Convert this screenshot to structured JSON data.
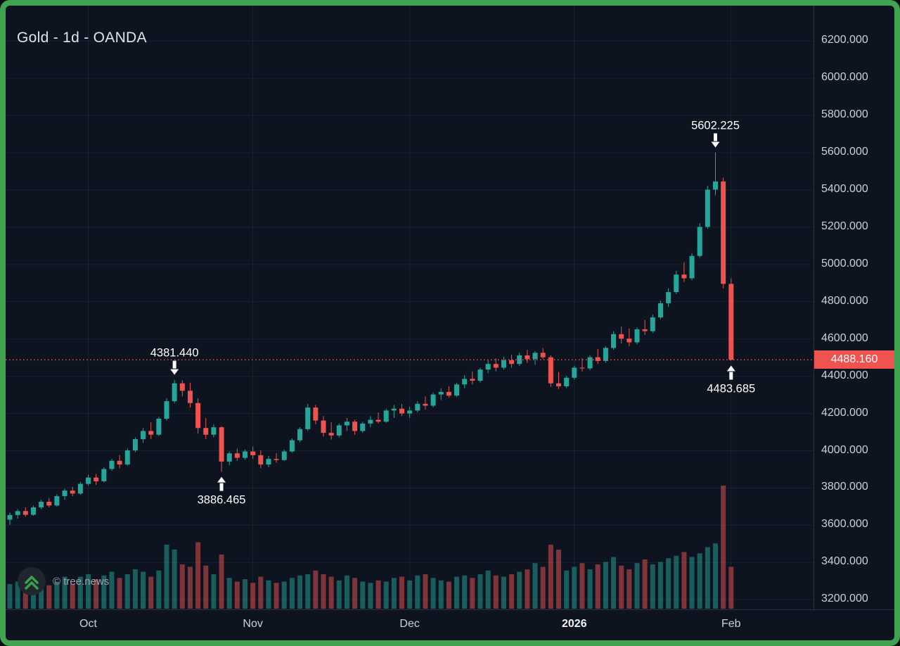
{
  "header": {
    "title": "Gold - 1d - OANDA"
  },
  "watermark": {
    "text": "© tree.news"
  },
  "price_label": {
    "value": "4488.160"
  },
  "colors": {
    "frame": "#3fa34f",
    "background": "#0d1420",
    "grid": "rgba(151,166,189,0.10)",
    "up": "#26a69a",
    "down": "#ef5350",
    "vol_up": "rgba(38,166,154,0.50)",
    "vol_down": "rgba(239,83,80,0.50)",
    "price_line": "#ef5350",
    "price_box": "#ef5350",
    "axis_text": "#ccd0da",
    "annotation": "#ffffff"
  },
  "chart_data": {
    "type": "candlestick",
    "symbol": "Gold",
    "interval": "1d",
    "exchange": "OANDA",
    "title": "Gold - 1d - OANDA",
    "legend_position": "none",
    "grid": true,
    "current_price": 4488.16,
    "price_axis": {
      "min_visible": 3148,
      "max_visible": 6390,
      "decimals": 3,
      "ticks": [
        3200,
        3400,
        3600,
        3800,
        4000,
        4200,
        4400,
        4600,
        4800,
        5000,
        5200,
        5400,
        5600,
        5800,
        6000,
        6200
      ]
    },
    "time_ticks": [
      {
        "label": "Oct",
        "index": 10
      },
      {
        "label": "Nov",
        "index": 31
      },
      {
        "label": "Dec",
        "index": 51
      },
      {
        "label": "2026",
        "index": 72,
        "emphasis": true
      },
      {
        "label": "Feb",
        "index": 92
      }
    ],
    "annotations": [
      {
        "text": "4381.440",
        "index": 21,
        "direction": "down"
      },
      {
        "text": "3886.465",
        "index": 27,
        "direction": "up"
      },
      {
        "text": "5602.225",
        "index": 90,
        "direction": "down"
      },
      {
        "text": "4483.685",
        "index": 92,
        "direction": "up"
      }
    ],
    "candles": [
      [
        3630,
        3668,
        3602,
        3655
      ],
      [
        3655,
        3686,
        3636,
        3676
      ],
      [
        3676,
        3696,
        3646,
        3656
      ],
      [
        3656,
        3706,
        3650,
        3696
      ],
      [
        3696,
        3736,
        3686,
        3726
      ],
      [
        3726,
        3746,
        3696,
        3706
      ],
      [
        3706,
        3766,
        3700,
        3756
      ],
      [
        3756,
        3796,
        3736,
        3786
      ],
      [
        3786,
        3806,
        3756,
        3770
      ],
      [
        3770,
        3832,
        3764,
        3822
      ],
      [
        3822,
        3872,
        3812,
        3856
      ],
      [
        3856,
        3876,
        3816,
        3836
      ],
      [
        3836,
        3912,
        3830,
        3902
      ],
      [
        3902,
        3956,
        3892,
        3946
      ],
      [
        3946,
        3976,
        3906,
        3926
      ],
      [
        3926,
        4012,
        3920,
        4002
      ],
      [
        4002,
        4072,
        3992,
        4062
      ],
      [
        4062,
        4122,
        4042,
        4106
      ],
      [
        4106,
        4152,
        4062,
        4086
      ],
      [
        4086,
        4182,
        4080,
        4172
      ],
      [
        4172,
        4282,
        4162,
        4266
      ],
      [
        4266,
        4381.44,
        4256,
        4362
      ],
      [
        4362,
        4378,
        4292,
        4322
      ],
      [
        4322,
        4366,
        4232,
        4256
      ],
      [
        4256,
        4282,
        4092,
        4122
      ],
      [
        4122,
        4176,
        4062,
        4086
      ],
      [
        4086,
        4142,
        4072,
        4126
      ],
      [
        4126,
        4132,
        3886.465,
        3942
      ],
      [
        3942,
        3996,
        3922,
        3986
      ],
      [
        3986,
        4012,
        3946,
        3962
      ],
      [
        3962,
        4006,
        3952,
        3996
      ],
      [
        3996,
        4022,
        3956,
        3976
      ],
      [
        3976,
        4002,
        3906,
        3926
      ],
      [
        3926,
        3972,
        3912,
        3956
      ],
      [
        3956,
        3986,
        3936,
        3950
      ],
      [
        3950,
        4006,
        3946,
        3996
      ],
      [
        3996,
        4066,
        3990,
        4056
      ],
      [
        4056,
        4126,
        4046,
        4116
      ],
      [
        4116,
        4252,
        4106,
        4232
      ],
      [
        4232,
        4246,
        4142,
        4162
      ],
      [
        4162,
        4186,
        4076,
        4096
      ],
      [
        4096,
        4152,
        4060,
        4082
      ],
      [
        4082,
        4146,
        4072,
        4136
      ],
      [
        4136,
        4176,
        4106,
        4156
      ],
      [
        4156,
        4166,
        4086,
        4106
      ],
      [
        4106,
        4156,
        4096,
        4146
      ],
      [
        4146,
        4186,
        4126,
        4166
      ],
      [
        4166,
        4206,
        4146,
        4156
      ],
      [
        4156,
        4226,
        4150,
        4216
      ],
      [
        4216,
        4246,
        4176,
        4226
      ],
      [
        4226,
        4250,
        4186,
        4200
      ],
      [
        4200,
        4236,
        4176,
        4216
      ],
      [
        4216,
        4266,
        4206,
        4252
      ],
      [
        4252,
        4292,
        4222,
        4242
      ],
      [
        4242,
        4312,
        4232,
        4302
      ],
      [
        4302,
        4336,
        4272,
        4316
      ],
      [
        4316,
        4346,
        4286,
        4296
      ],
      [
        4296,
        4366,
        4288,
        4356
      ],
      [
        4356,
        4406,
        4336,
        4386
      ],
      [
        4386,
        4426,
        4356,
        4376
      ],
      [
        4376,
        4446,
        4366,
        4436
      ],
      [
        4436,
        4486,
        4416,
        4466
      ],
      [
        4466,
        4496,
        4426,
        4446
      ],
      [
        4446,
        4506,
        4436,
        4486
      ],
      [
        4486,
        4516,
        4446,
        4466
      ],
      [
        4466,
        4526,
        4456,
        4512
      ],
      [
        4512,
        4542,
        4472,
        4492
      ],
      [
        4492,
        4536,
        4462,
        4526
      ],
      [
        4526,
        4552,
        4492,
        4502
      ],
      [
        4502,
        4512,
        4342,
        4362
      ],
      [
        4362,
        4422,
        4332,
        4346
      ],
      [
        4346,
        4402,
        4336,
        4392
      ],
      [
        4392,
        4456,
        4382,
        4446
      ],
      [
        4446,
        4496,
        4426,
        4442
      ],
      [
        4442,
        4512,
        4432,
        4502
      ],
      [
        4502,
        4546,
        4466,
        4482
      ],
      [
        4482,
        4562,
        4472,
        4552
      ],
      [
        4552,
        4642,
        4542,
        4626
      ],
      [
        4626,
        4666,
        4576,
        4602
      ],
      [
        4602,
        4656,
        4562,
        4582
      ],
      [
        4582,
        4662,
        4572,
        4652
      ],
      [
        4652,
        4702,
        4622,
        4642
      ],
      [
        4642,
        4732,
        4632,
        4716
      ],
      [
        4716,
        4806,
        4706,
        4792
      ],
      [
        4792,
        4872,
        4772,
        4852
      ],
      [
        4852,
        4966,
        4842,
        4946
      ],
      [
        4946,
        5012,
        4906,
        4926
      ],
      [
        4926,
        5062,
        4916,
        5046
      ],
      [
        5046,
        5222,
        5036,
        5202
      ],
      [
        5202,
        5422,
        5192,
        5402
      ],
      [
        5402,
        5602.225,
        5372,
        5446
      ],
      [
        5446,
        5466,
        4872,
        4896
      ],
      [
        4896,
        4926,
        4483.685,
        4488.16
      ]
    ],
    "volumes": [
      20,
      22,
      18,
      21,
      24,
      19,
      22,
      26,
      20,
      26,
      28,
      24,
      27,
      30,
      25,
      28,
      32,
      30,
      26,
      31,
      52,
      48,
      36,
      34,
      54,
      35,
      28,
      44,
      25,
      22,
      24,
      21,
      26,
      23,
      21,
      22,
      25,
      27,
      28,
      31,
      28,
      26,
      23,
      27,
      25,
      22,
      21,
      23,
      22,
      25,
      26,
      23,
      27,
      28,
      25,
      23,
      22,
      26,
      27,
      25,
      28,
      31,
      27,
      26,
      28,
      30,
      32,
      37,
      34,
      52,
      48,
      31,
      34,
      37,
      32,
      36,
      38,
      42,
      35,
      32,
      37,
      40,
      36,
      38,
      41,
      43,
      46,
      42,
      45,
      50,
      53,
      100,
      34
    ]
  }
}
